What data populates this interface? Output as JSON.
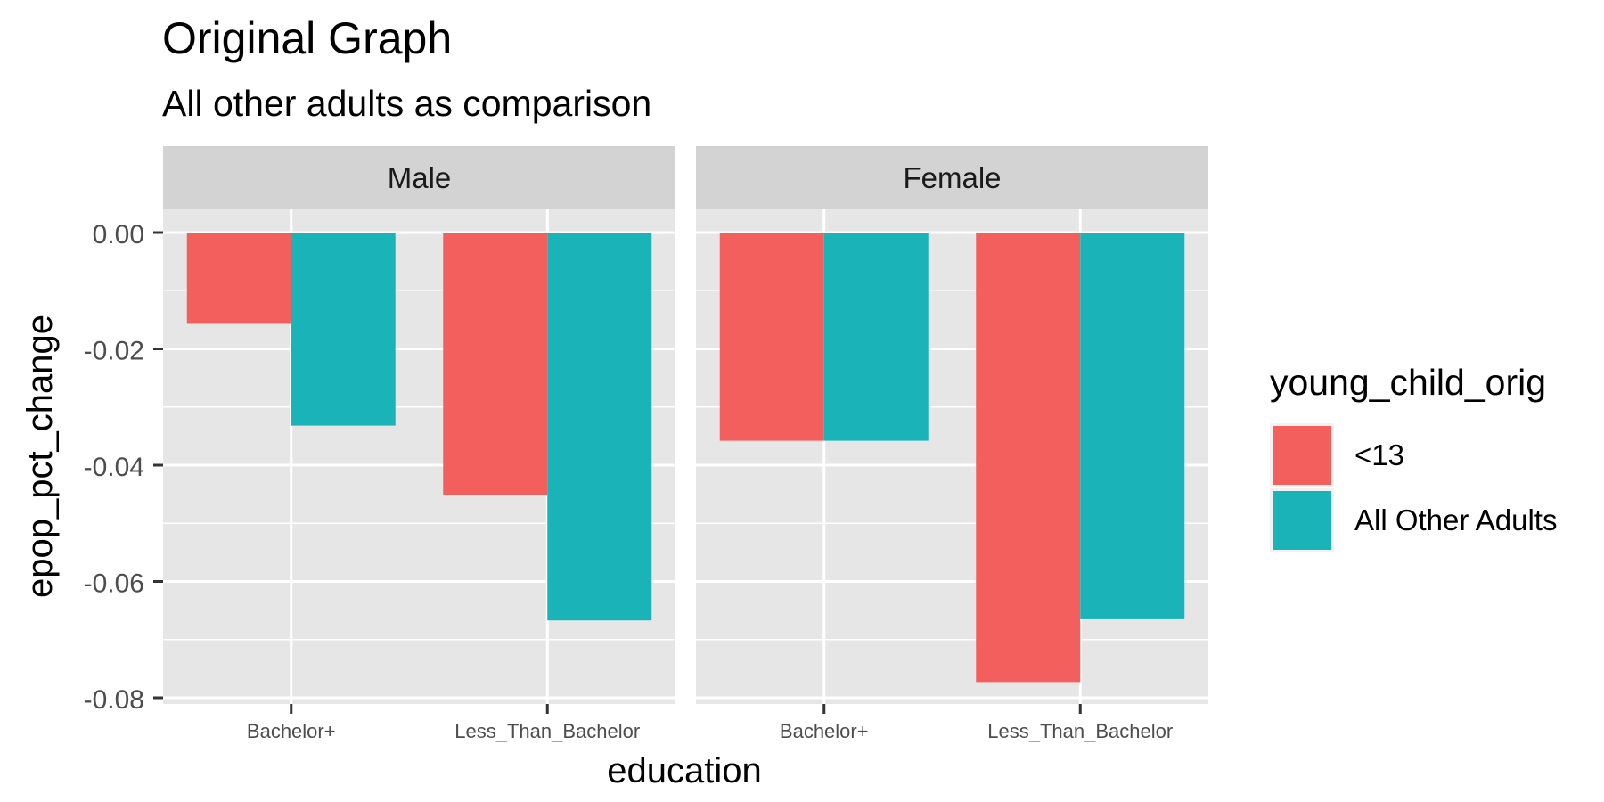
{
  "chart_data": {
    "type": "bar",
    "title": "Original Graph",
    "subtitle": "All other adults as comparison",
    "xlabel": "education",
    "ylabel": "epop_pct_change",
    "ylim": [
      -0.08,
      0.0
    ],
    "yticks": [
      "0.00",
      "-0.02",
      "-0.04",
      "-0.06",
      "-0.08"
    ],
    "ytick_values": [
      0.0,
      -0.02,
      -0.04,
      -0.06,
      -0.08
    ],
    "categories": [
      "Bachelor+",
      "Less_Than_Bachelor"
    ],
    "legend": {
      "title": "young_child_orig",
      "position": "right",
      "entries": [
        "<13",
        "All Other Adults"
      ]
    },
    "colors": {
      "<13": "#F25F5C",
      "All Other Adults": "#1AB3B8",
      "panel": "#E6E6E6",
      "strip": "#D3D3D3",
      "grid": "#FFFFFF"
    },
    "grid": true,
    "facets": [
      {
        "label": "Male",
        "series": [
          {
            "name": "<13",
            "values": [
              -0.0157,
              -0.0452
            ]
          },
          {
            "name": "All Other Adults",
            "values": [
              -0.0332,
              -0.0667
            ]
          }
        ]
      },
      {
        "label": "Female",
        "series": [
          {
            "name": "<13",
            "values": [
              -0.0358,
              -0.0773
            ]
          },
          {
            "name": "All Other Adults",
            "values": [
              -0.0358,
              -0.0665
            ]
          }
        ]
      }
    ]
  }
}
